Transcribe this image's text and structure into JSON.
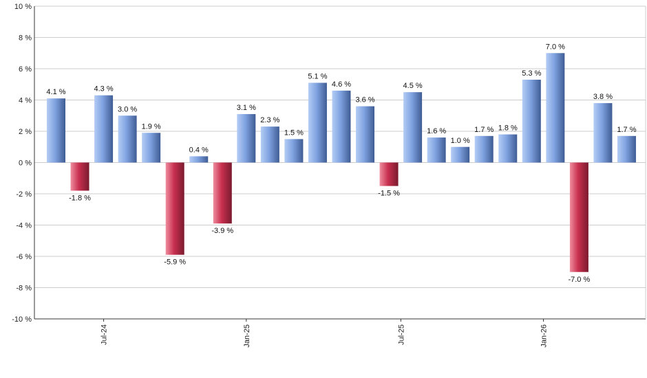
{
  "chart_data": {
    "type": "bar",
    "title": "",
    "xlabel": "",
    "ylabel": "",
    "ylim": [
      -10,
      10
    ],
    "y_ticks": [
      10,
      8,
      6,
      4,
      2,
      0,
      -2,
      -4,
      -6,
      -8,
      -10
    ],
    "y_tick_suffix": " %",
    "grid": true,
    "legend": "none",
    "values": [
      4.1,
      -1.8,
      4.3,
      3.0,
      1.9,
      -5.9,
      0.4,
      -3.9,
      3.1,
      2.3,
      1.5,
      5.1,
      4.6,
      3.6,
      -1.5,
      4.5,
      1.6,
      1.0,
      1.7,
      1.8,
      5.3,
      7.0,
      -7.0,
      3.8,
      1.7
    ],
    "data_labels": [
      "4.1 %",
      "-1.8 %",
      "4.3 %",
      "3.0 %",
      "1.9 %",
      "-5.9 %",
      "0.4 %",
      "-3.9 %",
      "3.1 %",
      "2.3 %",
      "1.5 %",
      "5.1 %",
      "4.6 %",
      "3.6 %",
      "-1.5 %",
      "4.5 %",
      "1.6 %",
      "1.0 %",
      "1.7 %",
      "1.8 %",
      "5.3 %",
      "7.0 %",
      "-7.0 %",
      "3.8 %",
      "1.7 %"
    ],
    "x_tick_labels": [
      {
        "label": "Jul-24",
        "bar_index": 2
      },
      {
        "label": "Jan-25",
        "bar_index": 8
      },
      {
        "label": "Jul-25",
        "bar_index": 14.5
      },
      {
        "label": "Jan-26",
        "bar_index": 20.5
      }
    ],
    "colors": {
      "positive_light": "#b4cdf5",
      "positive_mid": "#7fa2e0",
      "positive_dark": "#3f5c94",
      "negative_light": "#ef8d9f",
      "negative_mid": "#c8304f",
      "negative_dark": "#7a1a2e"
    }
  }
}
